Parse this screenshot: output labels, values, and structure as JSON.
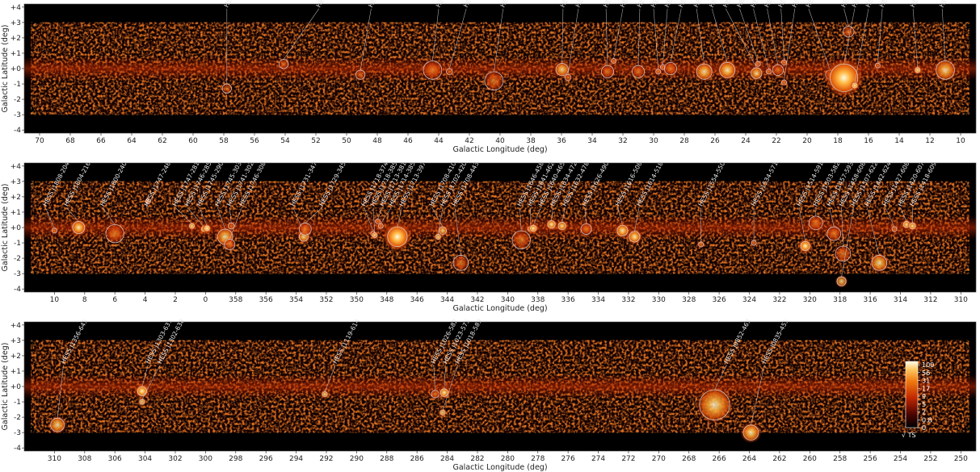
{
  "chart_data": [
    {
      "type": "heatmap",
      "xlabel": "Galactic Longitude (deg)",
      "ylabel": "Galactic Latitude (deg)",
      "xlim": [
        71,
        9
      ],
      "ylim": [
        -4.2,
        4.2
      ],
      "xticks": [
        "70",
        "68",
        "66",
        "64",
        "62",
        "60",
        "58",
        "56",
        "54",
        "52",
        "50",
        "48",
        "46",
        "44",
        "42",
        "40",
        "38",
        "36",
        "34",
        "32",
        "30",
        "28",
        "26",
        "24",
        "22",
        "20",
        "18",
        "16",
        "14",
        "12",
        "10"
      ],
      "yticks": [
        "+4",
        "+3",
        "+2",
        "+1",
        "+0",
        "-1",
        "-2",
        "-3",
        "-4"
      ],
      "sources": [
        {
          "name": "HESS J1943+213",
          "l": 57.8,
          "b": -1.3,
          "r": 0.3,
          "lab_l": 57.8,
          "lab_b": 3.9,
          "bright": 0.2
        },
        {
          "name": "HESS J1930+188",
          "l": 54.1,
          "b": 0.3,
          "r": 0.3,
          "lab_l": 51.8,
          "lab_b": 3.9,
          "bright": 0.15
        },
        {
          "name": "HESS J1923+141",
          "l": 49.1,
          "b": -0.4,
          "r": 0.3,
          "lab_l": 48.4,
          "lab_b": 3.9,
          "bright": 0.25
        },
        {
          "name": "HESS J1912+101",
          "l": 44.4,
          "b": -0.1,
          "r": 0.6,
          "lab_l": 44.0,
          "lab_b": 3.9,
          "bright": 0.45
        },
        {
          "name": "HESS J1911+090",
          "l": 43.3,
          "b": -0.2,
          "r": 0.2,
          "lab_l": 42.2,
          "lab_b": 3.9,
          "bright": 0.25
        },
        {
          "name": "HESS J1908+063",
          "l": 40.4,
          "b": -0.8,
          "r": 0.6,
          "lab_l": 39.8,
          "lab_b": 3.9,
          "bright": 0.4
        },
        {
          "name": "HESS J1857+026",
          "l": 35.96,
          "b": -0.06,
          "r": 0.4,
          "lab_l": 35.9,
          "lab_b": 3.9,
          "bright": 0.55
        },
        {
          "name": "HESS J1858+020",
          "l": 35.58,
          "b": -0.58,
          "r": 0.2,
          "lab_l": 34.9,
          "lab_b": 3.9,
          "bright": 0.4
        },
        {
          "name": "HESS J1852-000",
          "l": 33.0,
          "b": -0.2,
          "r": 0.4,
          "lab_l": 33.1,
          "lab_b": 3.9,
          "bright": 0.35
        },
        {
          "name": "HESS J1849-000",
          "l": 32.6,
          "b": 0.5,
          "r": 0.15,
          "lab_l": 32.0,
          "lab_b": 3.9,
          "bright": 0.45
        },
        {
          "name": "HESS J1848-018",
          "l": 31.0,
          "b": -0.2,
          "r": 0.4,
          "lab_l": 30.9,
          "lab_b": 3.9,
          "bright": 0.35
        },
        {
          "name": "HESS J1846-029",
          "l": 29.7,
          "b": -0.2,
          "r": 0.15,
          "lab_l": 30.0,
          "lab_b": 3.9,
          "bright": 0.5
        },
        {
          "name": "HESS J1844-030",
          "l": 29.4,
          "b": 0.1,
          "r": 0.15,
          "lab_l": 29.1,
          "lab_b": 3.9,
          "bright": 0.4
        },
        {
          "name": "HESS J1843-033",
          "l": 28.9,
          "b": 0.0,
          "r": 0.4,
          "lab_l": 28.2,
          "lab_b": 3.9,
          "bright": 0.45
        },
        {
          "name": "HESS J1841-055",
          "l": 26.7,
          "b": -0.2,
          "r": 0.5,
          "lab_l": 27.2,
          "lab_b": 3.9,
          "bright": 0.6
        },
        {
          "name": "HESS J1837-069",
          "l": 25.2,
          "b": -0.1,
          "r": 0.5,
          "lab_l": 26.2,
          "lab_b": 3.9,
          "bright": 0.7
        },
        {
          "name": "HESS J1834-087",
          "l": 23.3,
          "b": -0.3,
          "r": 0.35,
          "lab_l": 25.3,
          "lab_b": 3.9,
          "bright": 0.55
        },
        {
          "name": "HESS J1832-085",
          "l": 23.2,
          "b": 0.3,
          "r": 0.15,
          "lab_l": 24.4,
          "lab_b": 3.9,
          "bright": 0.35
        },
        {
          "name": "HESS J1832-093",
          "l": 22.5,
          "b": -0.2,
          "r": 0.15,
          "lab_l": 23.5,
          "lab_b": 3.9,
          "bright": 0.35
        },
        {
          "name": "HESS J1831-098",
          "l": 21.9,
          "b": -0.1,
          "r": 0.35,
          "lab_l": 22.6,
          "lab_b": 3.9,
          "bright": 0.35
        },
        {
          "name": "HESS J1828-099",
          "l": 21.5,
          "b": 0.4,
          "r": 0.15,
          "lab_l": 21.7,
          "lab_b": 3.9,
          "bright": 0.35
        },
        {
          "name": "HESS J1833-105",
          "l": 21.5,
          "b": -0.9,
          "r": 0.15,
          "lab_l": 20.8,
          "lab_b": 3.9,
          "bright": 0.5
        },
        {
          "name": "HESS J1826-130",
          "l": 18.5,
          "b": -0.4,
          "r": 0.3,
          "lab_l": 19.9,
          "lab_b": 3.9,
          "bright": 0.4
        },
        {
          "name": "HESS J1813-126",
          "l": 17.3,
          "b": 2.4,
          "r": 0.35,
          "lab_l": 17.6,
          "lab_b": 3.9,
          "bright": 0.3
        },
        {
          "name": "HESS J1825-137",
          "l": 17.6,
          "b": -0.6,
          "r": 0.9,
          "lab_l": 16.9,
          "lab_b": 3.9,
          "bright": 1.0
        },
        {
          "name": "HESS J1826-148",
          "l": 16.9,
          "b": -1.1,
          "r": 0.15,
          "lab_l": 16.0,
          "lab_b": 3.9,
          "bright": 0.8
        },
        {
          "name": "HESS J1818-154",
          "l": 15.4,
          "b": 0.2,
          "r": 0.15,
          "lab_l": 15.1,
          "lab_b": 3.9,
          "bright": 0.35
        },
        {
          "name": "HESS J1813-178",
          "l": 12.8,
          "b": -0.1,
          "r": 0.15,
          "lab_l": 13.1,
          "lab_b": 3.9,
          "bright": 0.75
        },
        {
          "name": "HESS J1809-193",
          "l": 11.0,
          "b": -0.1,
          "r": 0.6,
          "lab_l": 11.2,
          "lab_b": 3.9,
          "bright": 0.55
        }
      ]
    },
    {
      "type": "heatmap",
      "xlabel": "Galactic Longitude (deg)",
      "ylabel": "Galactic Latitude (deg)",
      "xlim": [
        12,
        309
      ],
      "ylim": [
        -4.2,
        4.2
      ],
      "xticks": [
        "10",
        "8",
        "6",
        "4",
        "2",
        "0",
        "358",
        "356",
        "354",
        "352",
        "350",
        "348",
        "346",
        "344",
        "342",
        "340",
        "338",
        "336",
        "334",
        "332",
        "330",
        "328",
        "326",
        "324",
        "322",
        "320",
        "318",
        "316",
        "314",
        "312",
        "310"
      ],
      "yticks": [
        "+4",
        "+3",
        "+2",
        "+1",
        "+0",
        "-1",
        "-2",
        "-3",
        "-4"
      ],
      "sources": [
        {
          "name": "HESS J1808-204",
          "l": 10.0,
          "b": -0.2,
          "r": 0.15,
          "lab_l": 10.6,
          "lab_b": 1.3,
          "bright": 0.35
        },
        {
          "name": "HESS J1804-216",
          "l": 8.4,
          "b": -0.0,
          "r": 0.4,
          "lab_l": 9.2,
          "lab_b": 1.3,
          "bright": 0.75
        },
        {
          "name": "HESS J1800-240",
          "l": 6.0,
          "b": -0.4,
          "r": 0.6,
          "lab_l": 6.8,
          "lab_b": 1.3,
          "bright": 0.45
        },
        {
          "name": "HESS J1747-248",
          "l": 3.8,
          "b": 1.7,
          "r": 0.15,
          "lab_l": 3.9,
          "lab_b": 1.3,
          "bright": 0.35
        },
        {
          "name": "HESS J1747-281",
          "l": 0.9,
          "b": 0.1,
          "r": 0.15,
          "lab_l": 2.0,
          "lab_b": 1.3,
          "bright": 0.65
        },
        {
          "name": "HESS J1746-285",
          "l": 0.1,
          "b": -0.1,
          "r": 0.15,
          "lab_l": 1.2,
          "lab_b": 1.3,
          "bright": 0.85
        },
        {
          "name": "HESS J1745-290",
          "l": 359.9,
          "b": -0.05,
          "r": 0.15,
          "lab_l": 0.4,
          "lab_b": 1.3,
          "bright": 1.0
        },
        {
          "name": "HESS J1745-303",
          "l": 358.7,
          "b": -0.6,
          "r": 0.5,
          "lab_l": 359.2,
          "lab_b": 1.3,
          "bright": 0.6
        },
        {
          "name": "HESS J1741-302",
          "l": 358.3,
          "b": 0.1,
          "r": 0.2,
          "lab_l": 358.4,
          "lab_b": 1.3,
          "bright": 0.35
        },
        {
          "name": "HESS J1746-308",
          "l": 358.4,
          "b": -1.1,
          "r": 0.35,
          "lab_l": 357.6,
          "lab_b": 1.3,
          "bright": 0.45
        },
        {
          "name": "HESS J1731-347",
          "l": 353.5,
          "b": -0.6,
          "r": 0.3,
          "lab_l": 354.2,
          "lab_b": 1.3,
          "bright": 0.65
        },
        {
          "name": "HESS J1729-345",
          "l": 353.4,
          "b": -0.1,
          "r": 0.4,
          "lab_l": 352.3,
          "lab_b": 1.3,
          "bright": 0.45
        },
        {
          "name": "HESS J1718-374",
          "l": 348.9,
          "b": -0.4,
          "r": 0.15,
          "lab_l": 349.5,
          "lab_b": 1.3,
          "bright": 0.35
        },
        {
          "name": "HESS J1718-385",
          "l": 348.8,
          "b": -0.5,
          "r": 0.15,
          "lab_l": 348.9,
          "lab_b": 1.3,
          "bright": 0.55
        },
        {
          "name": "HESS J1713-381",
          "l": 348.6,
          "b": 0.4,
          "r": 0.15,
          "lab_l": 348.3,
          "lab_b": 1.3,
          "bright": 0.5
        },
        {
          "name": "HESS J1714-385",
          "l": 348.4,
          "b": 0.1,
          "r": 0.15,
          "lab_l": 347.7,
          "lab_b": 1.3,
          "bright": 0.5
        },
        {
          "name": "HESS J1713-397",
          "l": 347.3,
          "b": -0.6,
          "r": 0.65,
          "lab_l": 347.0,
          "lab_b": 1.3,
          "bright": 1.0
        },
        {
          "name": "HESS J1708-410",
          "l": 344.3,
          "b": -0.2,
          "r": 0.25,
          "lab_l": 345.0,
          "lab_b": 1.3,
          "bright": 0.55
        },
        {
          "name": "HESS J1702-420",
          "l": 344.6,
          "b": -0.6,
          "r": 0.15,
          "lab_l": 344.3,
          "lab_b": 1.3,
          "bright": 0.6
        },
        {
          "name": "HESS J1708-443",
          "l": 343.1,
          "b": -2.3,
          "r": 0.5,
          "lab_l": 343.5,
          "lab_b": 1.3,
          "bright": 0.35
        },
        {
          "name": "HESS J1646-458",
          "l": 339.1,
          "b": -0.8,
          "r": 0.6,
          "lab_l": 339.2,
          "lab_b": 1.3,
          "bright": 0.4
        },
        {
          "name": "HESS J1641-462",
          "l": 338.5,
          "b": -0.1,
          "r": 0.15,
          "lab_l": 338.5,
          "lab_b": 1.3,
          "bright": 0.6
        },
        {
          "name": "HESS J1640-465",
          "l": 338.3,
          "b": -0.05,
          "r": 0.2,
          "lab_l": 337.8,
          "lab_b": 1.3,
          "bright": 0.85
        },
        {
          "name": "HESS J1634-472",
          "l": 337.1,
          "b": 0.2,
          "r": 0.25,
          "lab_l": 337.0,
          "lab_b": 1.3,
          "bright": 0.75
        },
        {
          "name": "HESS J1632-478",
          "l": 336.4,
          "b": 0.1,
          "r": 0.25,
          "lab_l": 336.2,
          "lab_b": 1.3,
          "bright": 0.65
        },
        {
          "name": "HESS J1626-490",
          "l": 334.8,
          "b": -0.1,
          "r": 0.35,
          "lab_l": 334.9,
          "lab_b": 1.3,
          "bright": 0.5
        },
        {
          "name": "HESS J1616-508",
          "l": 332.4,
          "b": -0.2,
          "r": 0.35,
          "lab_l": 332.7,
          "lab_b": 1.3,
          "bright": 0.75
        },
        {
          "name": "HESS J1614-518",
          "l": 331.6,
          "b": -0.6,
          "r": 0.35,
          "lab_l": 331.3,
          "lab_b": 1.3,
          "bright": 0.8
        },
        {
          "name": "HESS J1554-550",
          "l": 327.2,
          "b": -1.1,
          "r": 0.15,
          "lab_l": 327.2,
          "lab_b": 1.3,
          "bright": 0.45
        },
        {
          "name": "HESS J1534-571",
          "l": 323.7,
          "b": -1.0,
          "r": 0.15,
          "lab_l": 323.7,
          "lab_b": 1.3,
          "bright": 0.3
        },
        {
          "name": "HESS J1514-591",
          "l": 320.3,
          "b": -1.2,
          "r": 0.3,
          "lab_l": 320.7,
          "lab_b": 1.3,
          "bright": 0.9
        },
        {
          "name": "HESS J1503-582",
          "l": 319.6,
          "b": 0.3,
          "r": 0.45,
          "lab_l": 319.6,
          "lab_b": 1.3,
          "bright": 0.45
        },
        {
          "name": "HESS J1457-593",
          "l": 318.4,
          "b": -0.4,
          "r": 0.45,
          "lab_l": 318.7,
          "lab_b": 1.3,
          "bright": 0.45
        },
        {
          "name": "HESS J1458-608",
          "l": 317.8,
          "b": -1.7,
          "r": 0.5,
          "lab_l": 317.9,
          "lab_b": 1.3,
          "bright": 0.45
        },
        {
          "name": "HESS J1507-622",
          "l": 317.9,
          "b": -3.5,
          "r": 0.3,
          "lab_l": 317.1,
          "lab_b": 1.3,
          "bright": 0.55
        },
        {
          "name": "HESS J1442-624",
          "l": 315.4,
          "b": -2.3,
          "r": 0.5,
          "lab_l": 316.2,
          "lab_b": 1.3,
          "bright": 0.6
        },
        {
          "name": "HESS J1427-608",
          "l": 314.4,
          "b": -0.1,
          "r": 0.15,
          "lab_l": 315.0,
          "lab_b": 1.3,
          "bright": 0.4
        },
        {
          "name": "HESS J1420-607",
          "l": 313.6,
          "b": 0.2,
          "r": 0.2,
          "lab_l": 314.0,
          "lab_b": 1.3,
          "bright": 0.7
        },
        {
          "name": "HESS J1418-609",
          "l": 313.2,
          "b": 0.1,
          "r": 0.2,
          "lab_l": 313.2,
          "lab_b": 1.3,
          "bright": 0.7
        }
      ]
    },
    {
      "type": "heatmap",
      "xlabel": "Galactic Longitude (deg)",
      "ylabel": "Galactic Latitude (deg)",
      "xlim": [
        312,
        249
      ],
      "ylim": [
        -4.2,
        4.2
      ],
      "xticks": [
        "310",
        "308",
        "306",
        "304",
        "302",
        "300",
        "298",
        "296",
        "294",
        "292",
        "290",
        "288",
        "286",
        "284",
        "282",
        "280",
        "278",
        "276",
        "274",
        "272",
        "270",
        "268",
        "266",
        "264",
        "262",
        "260",
        "258",
        "256",
        "254",
        "252",
        "250"
      ],
      "yticks": [
        "+4",
        "+3",
        "+2",
        "+1",
        "+0",
        "-1",
        "-2",
        "-3",
        "-4"
      ],
      "sources": [
        {
          "name": "HESS J1356-645",
          "l": 309.8,
          "b": -2.5,
          "r": 0.45,
          "lab_l": 309.4,
          "lab_b": 1.4,
          "bright": 0.6
        },
        {
          "name": "HESS J1303-631",
          "l": 304.2,
          "b": -0.3,
          "r": 0.3,
          "lab_l": 303.8,
          "lab_b": 1.4,
          "bright": 0.9
        },
        {
          "name": "HESS J1302-638",
          "l": 304.2,
          "b": -1.0,
          "r": 0.15,
          "lab_l": 303.0,
          "lab_b": 1.4,
          "bright": 0.6
        },
        {
          "name": "HESS J1119-614",
          "l": 292.1,
          "b": -0.5,
          "r": 0.15,
          "lab_l": 291.4,
          "lab_b": 1.4,
          "bright": 0.6
        },
        {
          "name": "HESS J1026-582",
          "l": 284.8,
          "b": -0.5,
          "r": 0.25,
          "lab_l": 284.9,
          "lab_b": 1.4,
          "bright": 0.5
        },
        {
          "name": "HESS J1023-575",
          "l": 284.2,
          "b": -0.4,
          "r": 0.25,
          "lab_l": 284.1,
          "lab_b": 1.4,
          "bright": 0.8
        },
        {
          "name": "HESS J1018-589",
          "l": 284.3,
          "b": -1.7,
          "r": 0.15,
          "lab_l": 283.3,
          "lab_b": 1.4,
          "bright": 0.6
        },
        {
          "name": "HESS J0852-463",
          "l": 266.3,
          "b": -1.2,
          "r": 1.0,
          "lab_l": 265.5,
          "lab_b": 1.4,
          "bright": 0.65
        },
        {
          "name": "HESS J0835-455",
          "l": 263.9,
          "b": -3.0,
          "r": 0.5,
          "lab_l": 263.0,
          "lab_b": 1.4,
          "bright": 0.75
        }
      ]
    }
  ],
  "colorbar": {
    "ticks": [
      "100",
      "56",
      "31",
      "17",
      "9",
      "5",
      "2",
      "0.8",
      "0"
    ],
    "label": "√ TS"
  },
  "colors": {
    "background": "#000000",
    "map_dark": "#3a0400",
    "map_mid": "#c32a00",
    "map_hot": "#ff9a1a",
    "map_peak": "#fffbe0",
    "circle": "#dcdcdc"
  }
}
